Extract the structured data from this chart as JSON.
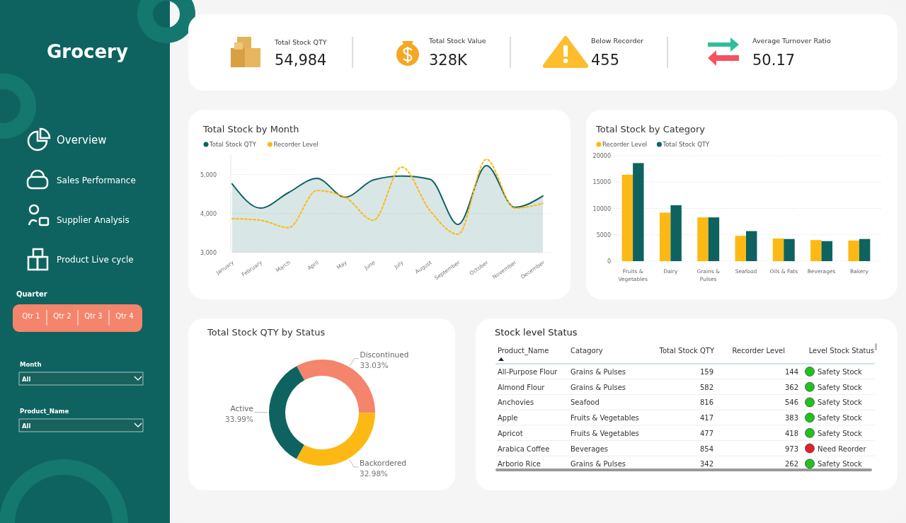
{
  "chart_data": [
    {
      "type": "other",
      "title": "Grocery",
      "annotations": [
        "Overview",
        "Sales Performance",
        "Supplier Analysis",
        "Product Live cycle",
        "Quarter",
        "Qtr 1",
        "Qtr 2",
        "Qtr 3",
        "Qtr 4",
        "Month",
        "All",
        "Product_Name",
        "All"
      ]
    },
    {
      "type": "other",
      "annotations": [
        "Total Stock QTY",
        "54,984",
        "Total Stock Value",
        "328K",
        "Below Recorder",
        "455",
        "Average Turnover Ratio",
        "50.17"
      ]
    },
    {
      "type": "line",
      "title": "Total Stock by Month",
      "categories": [
        "January",
        "February",
        "March",
        "April",
        "May",
        "June",
        "July",
        "August",
        "September",
        "October",
        "November",
        "December"
      ],
      "series": [
        {
          "name": "Total Stock QTY",
          "type": "area",
          "color": "#0e6360",
          "values": [
            4760,
            4140,
            4540,
            4900,
            4420,
            4860,
            4960,
            4880,
            3720,
            5230,
            4160,
            4450
          ]
        },
        {
          "name": "Recorder Level",
          "type": "line",
          "color": "#fdb913",
          "line_style": "dotted",
          "values": [
            3870,
            3830,
            3640,
            4590,
            4420,
            3830,
            5190,
            4080,
            3470,
            5390,
            4140,
            4260
          ]
        }
      ],
      "ylim": [
        3000,
        5500
      ],
      "yticks": [
        {
          "value": 3000,
          "label": "3,000"
        },
        {
          "value": 4000,
          "label": "4,000"
        },
        {
          "value": 5000,
          "label": "5,000"
        }
      ],
      "grid": "y",
      "legend": "top left"
    },
    {
      "type": "bar",
      "title": "Total Stock by Category",
      "categories": [
        "Fruits & Vegetables",
        "Dairy",
        "Grains & Pulses",
        "Seafood",
        "Oils & Fats",
        "Beverages",
        "Bakery"
      ],
      "series": [
        {
          "name": "Recorder Level",
          "color": "#fdb913",
          "values": [
            16400,
            9200,
            8300,
            4800,
            4300,
            4000,
            3900
          ]
        },
        {
          "name": "Total Stock QTY",
          "color": "#0e6360",
          "values": [
            18600,
            10600,
            8300,
            5700,
            4200,
            3800,
            4200
          ]
        }
      ],
      "ylim": [
        0,
        20000
      ],
      "yticks": [
        0,
        5000,
        10000,
        15000,
        20000
      ],
      "grid": "y",
      "legend": "top left"
    },
    {
      "type": "donut",
      "title": "Total Stock QTY by Status",
      "categories": [
        "Discontinued",
        "Backordered",
        "Active"
      ],
      "values": [
        33.03,
        32.98,
        33.99
      ],
      "colors": [
        "#f4846c",
        "#fdb913",
        "#0e6360"
      ],
      "value_labels": [
        "33.03%",
        "32.98%",
        "33.99%"
      ]
    },
    {
      "type": "other",
      "title": "Stock level Status",
      "colors": [
        "#1fc21f",
        "#1fc21f",
        "#1fc21f",
        "#1fc21f",
        "#1fc21f",
        "#e0202a",
        "#1fc21f"
      ],
      "annotations": [
        "Product_Name",
        "Catagory",
        "Total Stock QTY",
        "Recorder Level",
        "Level Stock Status",
        "All-Purpose Flour",
        "Grains & Pulses",
        "159",
        "144",
        "Safety Stock",
        "Almond Flour",
        "Grains & Pulses",
        "582",
        "362",
        "Safety Stock",
        "Anchovies",
        "Seafood",
        "816",
        "546",
        "Safety Stock",
        "Apple",
        "Fruits & Vegetables",
        "417",
        "383",
        "Safety Stock",
        "Apricot",
        "Fruits & Vegetables",
        "477",
        "418",
        "Safety Stock",
        "Arabica Coffee",
        "Beverages",
        "854",
        "973",
        "Need Reorder",
        "Arborio Rice",
        "Grains & Pulses",
        "342",
        "262",
        "Safety Stock"
      ]
    }
  ]
}
